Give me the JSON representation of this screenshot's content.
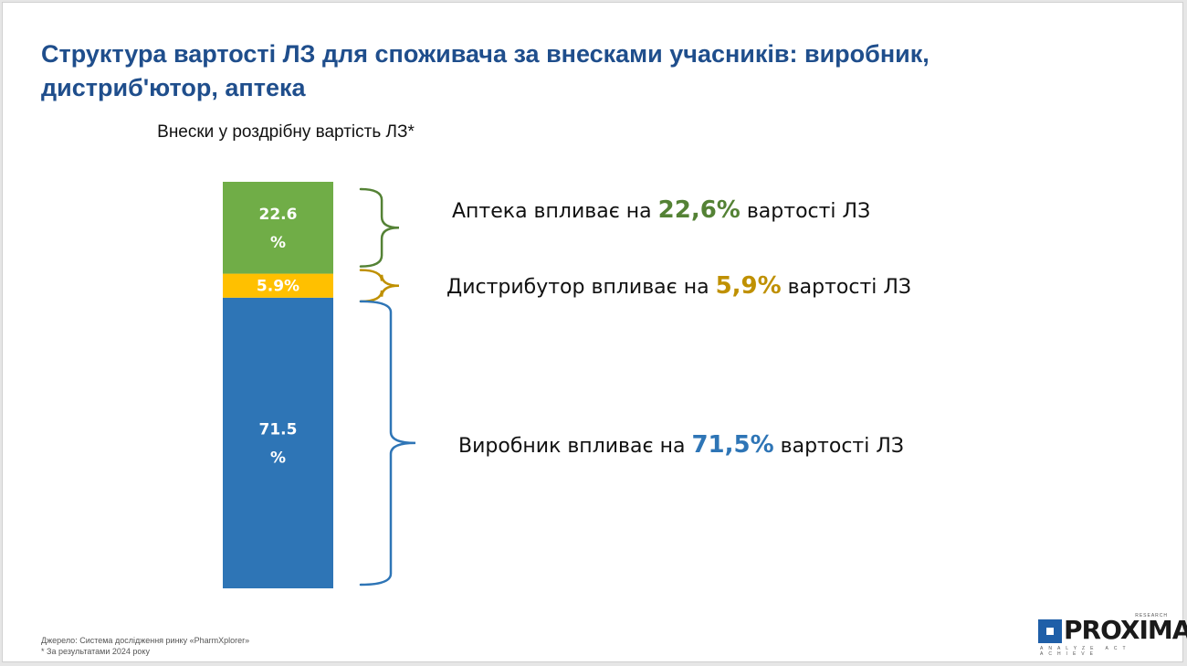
{
  "title": "Структура вартості ЛЗ для споживача за внесками учасників: виробник, дистриб'ютор, аптека",
  "chart_data": {
    "type": "bar",
    "stacked": true,
    "xlabel": "Внески у роздрібну вартість ЛЗ*",
    "ylabel": "",
    "series": [
      {
        "name": "Виробник",
        "value": 71.5,
        "label": "71.5 %",
        "color": "#2e75b6"
      },
      {
        "name": "Дистрибутор",
        "value": 5.9,
        "label": "5.9%",
        "color": "#ffc000"
      },
      {
        "name": "Аптека",
        "value": 22.6,
        "label": "22.6 %",
        "color": "#70ad47"
      }
    ]
  },
  "annotations": [
    {
      "prefix": "Аптека впливає на ",
      "value": "22,6%",
      "suffix": " вартості ЛЗ",
      "color": "#548235"
    },
    {
      "prefix": "Дистрибутор впливає на ",
      "value": "5,9%",
      "suffix": " вартості ЛЗ",
      "color": "#bf9000"
    },
    {
      "prefix": "Виробник впливає на ",
      "value": "71,5%",
      "suffix": " вартості ЛЗ",
      "color": "#2e75b6"
    }
  ],
  "footer": {
    "source": "Джерело: Система дослідження ринку «PharmXplorer»",
    "note": "* За результатами 2024 року"
  },
  "logo": {
    "name": "PROXIMA",
    "sup": "RESEARCH",
    "tagline": "ANALYZE ACT ACHIEVE"
  }
}
